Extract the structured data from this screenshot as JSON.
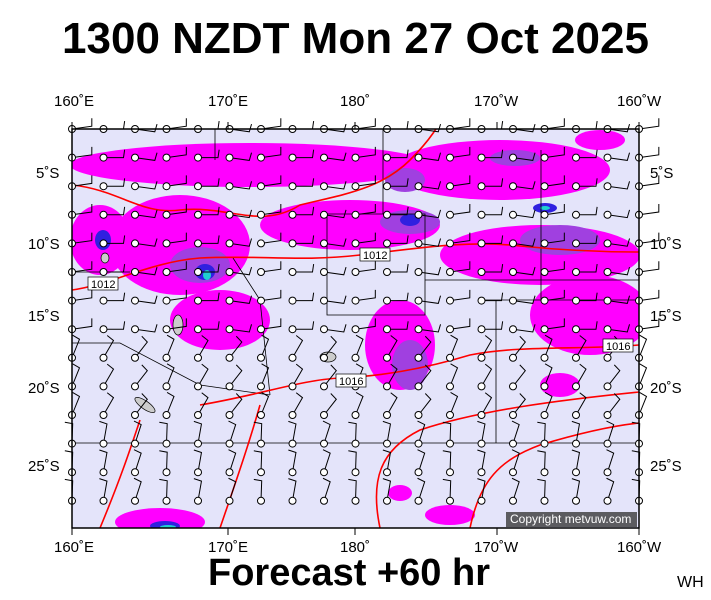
{
  "title": "1300 NZDT Mon 27 Oct 2025",
  "footer": "Forecast +60 hr",
  "corner_tag": "WH",
  "copyright": "Copyright metvuw.com",
  "axes": {
    "lon_labels": [
      "160˚E",
      "170˚E",
      "180˚",
      "170˚W",
      "160˚W"
    ],
    "lat_labels": [
      "5˚S",
      "10˚S",
      "15˚S",
      "20˚S",
      "25˚S"
    ]
  },
  "isobar_labels": [
    "1012",
    "1012",
    "1016",
    "1016"
  ],
  "colors": {
    "background": "#e4e4fa",
    "rain_light": "#ff00ff",
    "rain_medium": "#a040e0",
    "rain_heavy": "#3020e0",
    "rain_extreme": "#20d0d0",
    "isobar": "#ff0000"
  }
}
